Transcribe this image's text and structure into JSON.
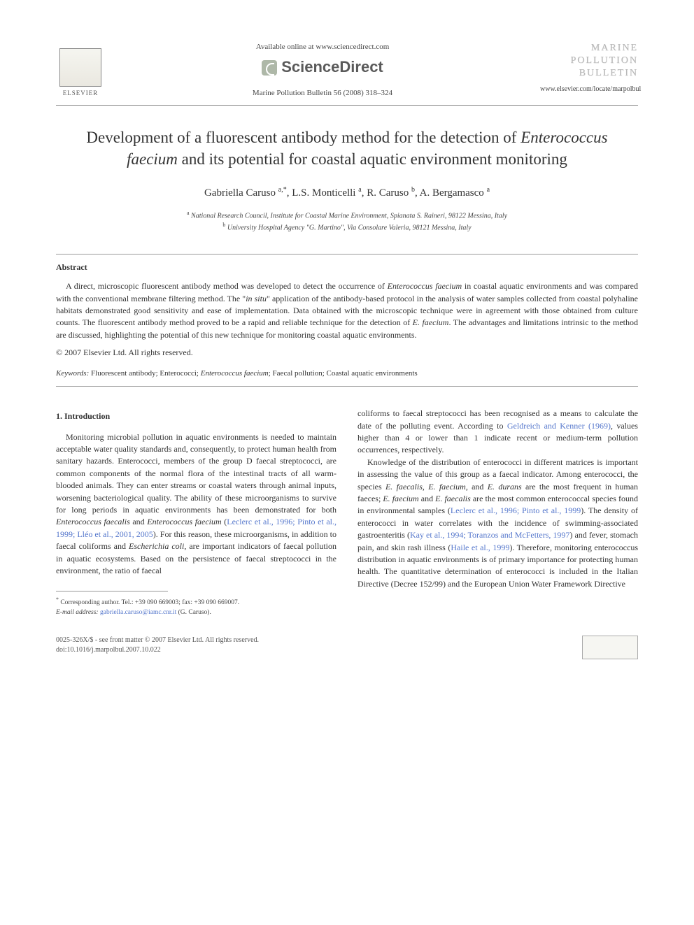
{
  "header": {
    "elsevier_label": "ELSEVIER",
    "available_online": "Available online at www.sciencedirect.com",
    "sciencedirect": "ScienceDirect",
    "journal_ref": "Marine Pollution Bulletin 56 (2008) 318–324",
    "journal_name_l1": "MARINE",
    "journal_name_l2": "POLLUTION",
    "journal_name_l3": "BULLETIN",
    "journal_url": "www.elsevier.com/locate/marpolbul"
  },
  "title": {
    "pre": "Development of a fluorescent antibody method for the detection of ",
    "italic": "Enterococcus faecium",
    "post": " and its potential for coastal aquatic environment monitoring"
  },
  "authors_html": "Gabriella Caruso <sup>a,*</sup>, L.S. Monticelli <sup>a</sup>, R. Caruso <sup>b</sup>, A. Bergamasco <sup>a</sup>",
  "affiliations": {
    "a": "National Research Council, Institute for Coastal Marine Environment, Spianata S. Raineri, 98122 Messina, Italy",
    "b": "University Hospital Agency \"G. Martino\", Via Consolare Valeria, 98121 Messina, Italy"
  },
  "abstract": {
    "heading": "Abstract",
    "text_pre": "A direct, microscopic fluorescent antibody method was developed to detect the occurrence of ",
    "text_it1": "Enterococcus faecium",
    "text_mid1": " in coastal aquatic environments and was compared with the conventional membrane filtering method. The \"",
    "text_it2": "in situ",
    "text_mid2": "\" application of the antibody-based protocol in the analysis of water samples collected from coastal polyhaline habitats demonstrated good sensitivity and ease of implementation. Data obtained with the microscopic technique were in agreement with those obtained from culture counts. The fluorescent antibody method proved to be a rapid and reliable technique for the detection of ",
    "text_it3": "E. faecium",
    "text_post": ". The advantages and limitations intrinsic to the method are discussed, highlighting the potential of this new technique for monitoring coastal aquatic environments.",
    "copyright": "© 2007 Elsevier Ltd. All rights reserved."
  },
  "keywords": {
    "label": "Keywords:",
    "text_pre": " Fluorescent antibody; Enterococci; ",
    "text_it": "Enterococcus faecium",
    "text_post": "; Faecal pollution; Coastal aquatic environments"
  },
  "body": {
    "intro_heading": "1. Introduction",
    "col1_p1_a": "Monitoring microbial pollution in aquatic environments is needed to maintain acceptable water quality standards and, consequently, to protect human health from sanitary hazards. Enterococci, members of the group D faecal streptococci, are common components of the normal flora of the intestinal tracts of all warm-blooded animals. They can enter streams or coastal waters through animal inputs, worsening bacteriological quality. The ability of these microorganisms to survive for long periods in aquatic environments has been demonstrated for both ",
    "col1_p1_it1": "Enterococcus faecalis",
    "col1_p1_b": " and ",
    "col1_p1_it2": "Enterococcus faecium",
    "col1_p1_c": " (",
    "col1_p1_ref1": "Leclerc et al., 1996; Pinto et al., 1999; Lléo et al., 2001, 2005",
    "col1_p1_d": "). For this reason, these microorganisms, in addition to faecal coliforms and ",
    "col1_p1_it3": "Escherichia coli",
    "col1_p1_e": ", are important indicators of faecal pollution in aquatic ecosystems. Based on the persistence of faecal streptococci in the environment, the ratio of faecal",
    "col2_p1_a": "coliforms to faecal streptococci has been recognised as a means to calculate the date of the polluting event. According to ",
    "col2_p1_ref1": "Geldreich and Kenner (1969)",
    "col2_p1_b": ", values higher than 4 or lower than 1 indicate recent or medium-term pollution occurrences, respectively.",
    "col2_p2_a": "Knowledge of the distribution of enterococci in different matrices is important in assessing the value of this group as a faecal indicator. Among enterococci, the species ",
    "col2_p2_it1": "E. faecalis",
    "col2_p2_b": ", ",
    "col2_p2_it2": "E. faecium",
    "col2_p2_c": ", and ",
    "col2_p2_it3": "E. durans",
    "col2_p2_d": " are the most frequent in human faeces; ",
    "col2_p2_it4": "E. faecium",
    "col2_p2_e": " and ",
    "col2_p2_it5": "E. faecalis",
    "col2_p2_f": " are the most common enterococcal species found in environmental samples (",
    "col2_p2_ref1": "Leclerc et al., 1996; Pinto et al., 1999",
    "col2_p2_g": "). The density of enterococci in water correlates with the incidence of swimming-associated gastroenteritis (",
    "col2_p2_ref2": "Kay et al., 1994; Toranzos and McFetters, 1997",
    "col2_p2_h": ") and fever, stomach pain, and skin rash illness (",
    "col2_p2_ref3": "Haile et al., 1999",
    "col2_p2_i": "). Therefore, monitoring enterococcus distribution in aquatic environments is of primary importance for protecting human health. The quantitative determination of enterococci is included in the Italian Directive (Decree 152/99) and the European Union Water Framework Directive"
  },
  "footnote": {
    "corr": "Corresponding author. Tel.: +39 090 669003; fax: +39 090 669007.",
    "email_label": "E-mail address:",
    "email": "gabriella.caruso@iamc.cnr.it",
    "email_suffix": " (G. Caruso)."
  },
  "footer": {
    "issn": "0025-326X/$ - see front matter © 2007 Elsevier Ltd. All rights reserved.",
    "doi": "doi:10.1016/j.marpolbul.2007.10.022"
  },
  "colors": {
    "link": "#5577cc",
    "text": "#333333",
    "muted": "#555555"
  }
}
